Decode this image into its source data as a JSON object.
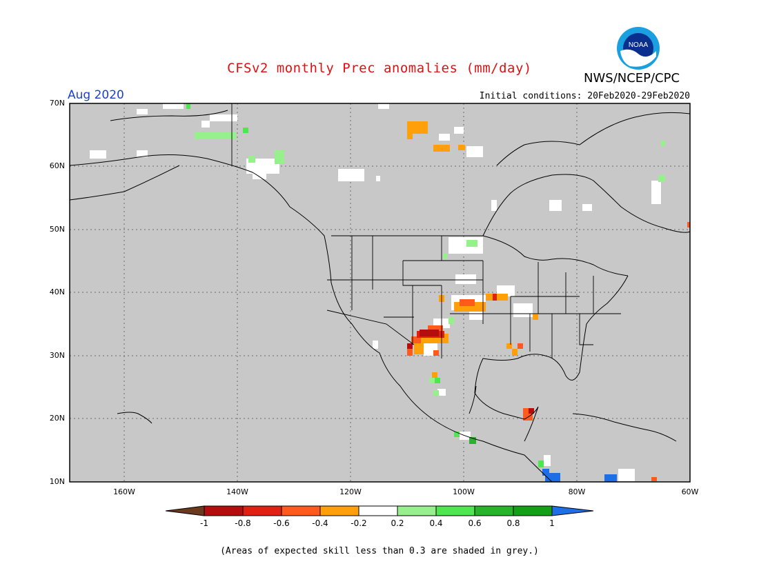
{
  "header": {
    "title": "CFSv2 monthly Prec anomalies (mm/day)",
    "agency": "NWS/NCEP/CPC",
    "logo_text": "NOAA",
    "valid_month": "Aug 2020",
    "initial_conditions": "Initial conditions: 20Feb2020-29Feb2020"
  },
  "axes": {
    "lat_labels": [
      "70N",
      "60N",
      "50N",
      "40N",
      "30N",
      "20N",
      "10N"
    ],
    "lon_labels": [
      "160W",
      "140W",
      "120W",
      "100W",
      "80W",
      "60W"
    ]
  },
  "colorbar": {
    "labels": [
      "-1",
      "-0.8",
      "-0.6",
      "-0.4",
      "-0.2",
      "0.2",
      "0.4",
      "0.6",
      "0.8",
      "1"
    ],
    "colors": [
      "#6b3a1e",
      "#b40d0d",
      "#e02010",
      "#ff5a1e",
      "#ffa00a",
      "#ffffff",
      "#96f08c",
      "#50e650",
      "#28b428",
      "#14a014",
      "#1e6ee6"
    ]
  },
  "footnote": "(Areas of expected skill less than 0.3 are shaded in grey.)",
  "colors": {
    "mask_grey": "#c8c8c8",
    "title_red": "#e01010",
    "month_blue": "#1a3fd0"
  }
}
